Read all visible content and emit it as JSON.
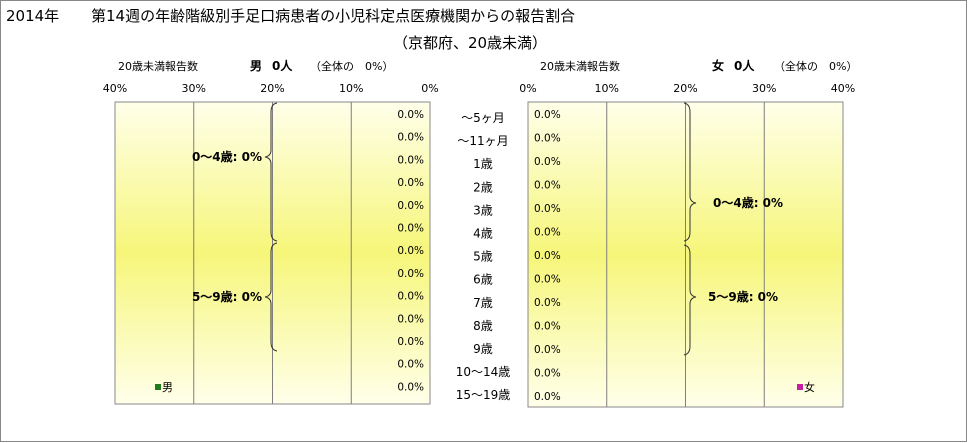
{
  "title_year": "2014年",
  "title_main": "第14週の年齢階級別手足口病患者の小児科定点医療機関からの報告割合",
  "subtitle": "（京都府、20歳未満）",
  "chart_data": [
    {
      "type": "bar",
      "side": "left",
      "header_label": "20歳未満報告数",
      "header_sex": "男",
      "header_count": "0人",
      "header_share": "（全体の　0%）",
      "legend": "男",
      "legend_color": "#1e7b1e",
      "axis_ticks": [
        "40%",
        "30%",
        "20%",
        "10%",
        "0%"
      ],
      "xlim": [
        0,
        40
      ],
      "categories": [
        "～5ヶ月",
        "～11ヶ月",
        "1歳",
        "2歳",
        "3歳",
        "4歳",
        "5歳",
        "6歳",
        "7歳",
        "8歳",
        "9歳",
        "10～14歳",
        "15～19歳"
      ],
      "values": [
        0,
        0,
        0,
        0,
        0,
        0,
        0,
        0,
        0,
        0,
        0,
        0,
        0
      ],
      "value_labels": [
        "0.0%",
        "0.0%",
        "0.0%",
        "0.0%",
        "0.0%",
        "0.0%",
        "0.0%",
        "0.0%",
        "0.0%",
        "0.0%",
        "0.0%",
        "0.0%",
        "0.0%"
      ],
      "group_labels": [
        "0～4歳: 0%",
        "5～9歳: 0%"
      ]
    },
    {
      "type": "bar",
      "side": "right",
      "header_label": "20歳未満報告数",
      "header_sex": "女",
      "header_count": "0人",
      "header_share": "（全体の　0%）",
      "legend": "女",
      "legend_color": "#c71fa4",
      "axis_ticks": [
        "0%",
        "10%",
        "20%",
        "30%",
        "40%"
      ],
      "xlim": [
        0,
        40
      ],
      "categories": [
        "～5ヶ月",
        "～11ヶ月",
        "1歳",
        "2歳",
        "3歳",
        "4歳",
        "5歳",
        "6歳",
        "7歳",
        "8歳",
        "9歳",
        "10～14歳",
        "15～19歳"
      ],
      "values": [
        0,
        0,
        0,
        0,
        0,
        0,
        0,
        0,
        0,
        0,
        0,
        0,
        0
      ],
      "value_labels": [
        "0.0%",
        "0.0%",
        "0.0%",
        "0.0%",
        "0.0%",
        "0.0%",
        "0.0%",
        "0.0%",
        "0.0%",
        "0.0%",
        "0.0%",
        "0.0%",
        "0.0%"
      ],
      "group_labels": [
        "0～4歳: 0%",
        "5～9歳: 0%"
      ]
    }
  ],
  "colors": {
    "plot_edge": "#ffffe8",
    "plot_center": "#f7f77c",
    "gridline": "#7f7f7f",
    "border": "#7f7f7f",
    "bar_male": "#1e7b1e",
    "bar_female": "#c71fa4"
  }
}
